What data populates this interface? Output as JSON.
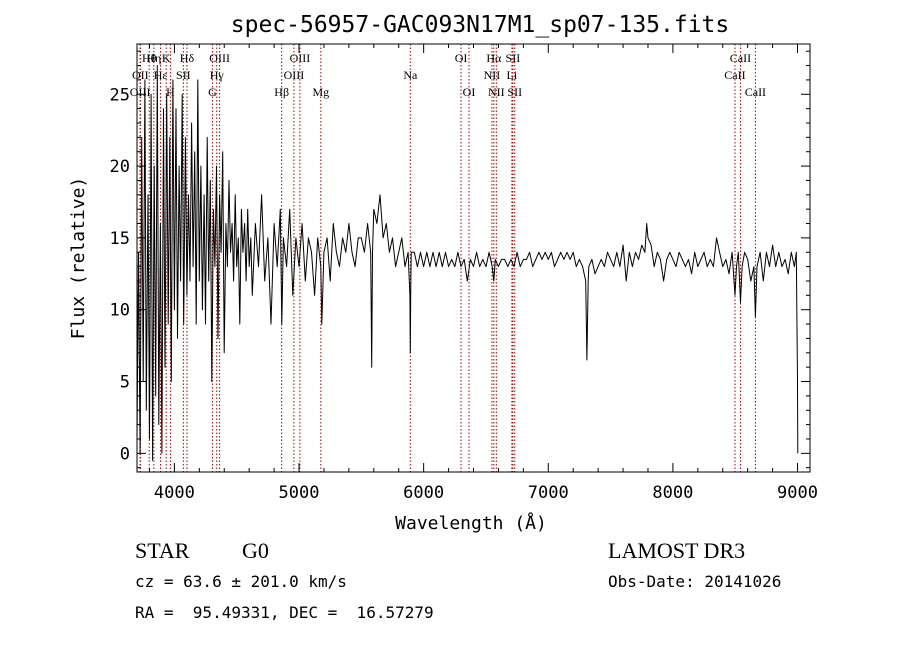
{
  "chart_data": {
    "type": "line",
    "title": "spec-56957-GAC093N17M1_sp07-135.fits",
    "xlabel": "Wavelength (Å)",
    "ylabel": "Flux (relative)",
    "xlim": [
      3700,
      9100
    ],
    "ylim": [
      -1.3,
      28.5
    ],
    "xticks": [
      4000,
      5000,
      6000,
      7000,
      8000,
      9000
    ],
    "yticks": [
      0,
      5,
      10,
      15,
      20,
      25
    ],
    "grid": false,
    "line_color": "#000000",
    "marker_color": "#aa0000",
    "series": [
      {
        "name": "flux",
        "points": [
          [
            3700,
            1
          ],
          [
            3712,
            14
          ],
          [
            3725,
            0
          ],
          [
            3738,
            22
          ],
          [
            3750,
            5
          ],
          [
            3763,
            26
          ],
          [
            3775,
            3
          ],
          [
            3788,
            18
          ],
          [
            3800,
            1
          ],
          [
            3813,
            25
          ],
          [
            3825,
            -0.5
          ],
          [
            3838,
            20
          ],
          [
            3850,
            4
          ],
          [
            3863,
            27
          ],
          [
            3875,
            2
          ],
          [
            3888,
            16
          ],
          [
            3900,
            0
          ],
          [
            3913,
            24
          ],
          [
            3925,
            6
          ],
          [
            3938,
            25
          ],
          [
            3950,
            9
          ],
          [
            3963,
            22
          ],
          [
            3975,
            5
          ],
          [
            3988,
            26
          ],
          [
            4000,
            10
          ],
          [
            4013,
            24
          ],
          [
            4025,
            8
          ],
          [
            4038,
            20
          ],
          [
            4050,
            12
          ],
          [
            4063,
            25
          ],
          [
            4075,
            9
          ],
          [
            4088,
            22
          ],
          [
            4100,
            11
          ],
          [
            4113,
            18
          ],
          [
            4125,
            12
          ],
          [
            4138,
            23
          ],
          [
            4150,
            13
          ],
          [
            4163,
            21
          ],
          [
            4175,
            9
          ],
          [
            4188,
            26
          ],
          [
            4200,
            12
          ],
          [
            4213,
            20
          ],
          [
            4225,
            10
          ],
          [
            4238,
            18
          ],
          [
            4250,
            9
          ],
          [
            4263,
            22
          ],
          [
            4275,
            12
          ],
          [
            4288,
            19
          ],
          [
            4300,
            5
          ],
          [
            4313,
            17
          ],
          [
            4325,
            13
          ],
          [
            4338,
            20
          ],
          [
            4350,
            8
          ],
          [
            4363,
            18
          ],
          [
            4375,
            14
          ],
          [
            4388,
            21
          ],
          [
            4400,
            7
          ],
          [
            4413,
            16
          ],
          [
            4425,
            13
          ],
          [
            4438,
            19
          ],
          [
            4450,
            14
          ],
          [
            4463,
            16
          ],
          [
            4475,
            12
          ],
          [
            4488,
            18
          ],
          [
            4500,
            13
          ],
          [
            4513,
            15
          ],
          [
            4525,
            9
          ],
          [
            4538,
            17
          ],
          [
            4550,
            14
          ],
          [
            4563,
            16
          ],
          [
            4575,
            12
          ],
          [
            4588,
            17
          ],
          [
            4600,
            13
          ],
          [
            4613,
            15
          ],
          [
            4625,
            11
          ],
          [
            4650,
            16
          ],
          [
            4675,
            13
          ],
          [
            4700,
            18
          ],
          [
            4725,
            12
          ],
          [
            4750,
            15
          ],
          [
            4775,
            9
          ],
          [
            4800,
            16
          ],
          [
            4825,
            13
          ],
          [
            4850,
            17
          ],
          [
            4862,
            9
          ],
          [
            4875,
            15
          ],
          [
            4900,
            13
          ],
          [
            4925,
            17
          ],
          [
            4950,
            11
          ],
          [
            4975,
            15
          ],
          [
            5000,
            13
          ],
          [
            5025,
            16
          ],
          [
            5050,
            12
          ],
          [
            5075,
            15
          ],
          [
            5100,
            14
          ],
          [
            5125,
            11
          ],
          [
            5150,
            15
          ],
          [
            5175,
            13
          ],
          [
            5183,
            9
          ],
          [
            5200,
            14
          ],
          [
            5225,
            15
          ],
          [
            5250,
            12
          ],
          [
            5275,
            16
          ],
          [
            5300,
            14
          ],
          [
            5325,
            13
          ],
          [
            5350,
            15
          ],
          [
            5375,
            14
          ],
          [
            5400,
            16
          ],
          [
            5425,
            14
          ],
          [
            5450,
            13
          ],
          [
            5475,
            15
          ],
          [
            5500,
            15
          ],
          [
            5525,
            14
          ],
          [
            5550,
            16
          ],
          [
            5575,
            14
          ],
          [
            5583,
            6
          ],
          [
            5590,
            14
          ],
          [
            5600,
            17
          ],
          [
            5625,
            16
          ],
          [
            5650,
            18
          ],
          [
            5675,
            15
          ],
          [
            5700,
            16
          ],
          [
            5725,
            14
          ],
          [
            5750,
            15
          ],
          [
            5775,
            13
          ],
          [
            5800,
            14
          ],
          [
            5825,
            15
          ],
          [
            5850,
            13
          ],
          [
            5875,
            14
          ],
          [
            5890,
            11
          ],
          [
            5893,
            7
          ],
          [
            5896,
            11
          ],
          [
            5900,
            14
          ],
          [
            5925,
            14
          ],
          [
            5950,
            13
          ],
          [
            5975,
            14
          ],
          [
            6000,
            13
          ],
          [
            6025,
            14
          ],
          [
            6050,
            13
          ],
          [
            6075,
            14
          ],
          [
            6100,
            13
          ],
          [
            6125,
            14
          ],
          [
            6150,
            13
          ],
          [
            6175,
            14
          ],
          [
            6200,
            13
          ],
          [
            6225,
            13.5
          ],
          [
            6250,
            13
          ],
          [
            6275,
            14
          ],
          [
            6300,
            13
          ],
          [
            6325,
            13.5
          ],
          [
            6350,
            12
          ],
          [
            6375,
            13.5
          ],
          [
            6400,
            13
          ],
          [
            6425,
            14
          ],
          [
            6450,
            13
          ],
          [
            6475,
            13.5
          ],
          [
            6500,
            13
          ],
          [
            6525,
            14
          ],
          [
            6550,
            13
          ],
          [
            6563,
            12
          ],
          [
            6575,
            13.5
          ],
          [
            6600,
            13
          ],
          [
            6625,
            13.5
          ],
          [
            6650,
            13.5
          ],
          [
            6675,
            13
          ],
          [
            6700,
            13.5
          ],
          [
            6725,
            13
          ],
          [
            6750,
            14
          ],
          [
            6775,
            13
          ],
          [
            6800,
            13.5
          ],
          [
            6825,
            13.5
          ],
          [
            6850,
            14
          ],
          [
            6875,
            13
          ],
          [
            6900,
            13.5
          ],
          [
            6925,
            14
          ],
          [
            6950,
            13.5
          ],
          [
            6975,
            14
          ],
          [
            7000,
            13.5
          ],
          [
            7025,
            14
          ],
          [
            7050,
            13
          ],
          [
            7075,
            13.5
          ],
          [
            7100,
            14
          ],
          [
            7125,
            13.5
          ],
          [
            7150,
            14
          ],
          [
            7175,
            13.5
          ],
          [
            7200,
            14
          ],
          [
            7225,
            13
          ],
          [
            7250,
            13.5
          ],
          [
            7275,
            13
          ],
          [
            7300,
            12
          ],
          [
            7310,
            6.5
          ],
          [
            7320,
            12
          ],
          [
            7325,
            13
          ],
          [
            7350,
            13.5
          ],
          [
            7375,
            12.5
          ],
          [
            7400,
            13
          ],
          [
            7425,
            13.5
          ],
          [
            7450,
            13
          ],
          [
            7475,
            14
          ],
          [
            7500,
            13.5
          ],
          [
            7525,
            13
          ],
          [
            7550,
            14
          ],
          [
            7575,
            13
          ],
          [
            7600,
            14.5
          ],
          [
            7625,
            12
          ],
          [
            7650,
            14
          ],
          [
            7675,
            13
          ],
          [
            7700,
            14
          ],
          [
            7725,
            13.5
          ],
          [
            7750,
            14.5
          ],
          [
            7775,
            14
          ],
          [
            7790,
            16
          ],
          [
            7800,
            15
          ],
          [
            7825,
            14.5
          ],
          [
            7850,
            13
          ],
          [
            7875,
            14
          ],
          [
            7900,
            13.5
          ],
          [
            7925,
            12
          ],
          [
            7950,
            13.5
          ],
          [
            7975,
            14
          ],
          [
            8000,
            13.5
          ],
          [
            8025,
            13
          ],
          [
            8050,
            14
          ],
          [
            8075,
            13.5
          ],
          [
            8100,
            13
          ],
          [
            8125,
            13.5
          ],
          [
            8150,
            12.5
          ],
          [
            8175,
            14
          ],
          [
            8200,
            13
          ],
          [
            8225,
            13.5
          ],
          [
            8250,
            14
          ],
          [
            8275,
            13
          ],
          [
            8300,
            13.5
          ],
          [
            8325,
            13
          ],
          [
            8350,
            15
          ],
          [
            8375,
            14
          ],
          [
            8400,
            13
          ],
          [
            8425,
            13.5
          ],
          [
            8450,
            12.5
          ],
          [
            8475,
            14
          ],
          [
            8498,
            11
          ],
          [
            8510,
            13
          ],
          [
            8525,
            14
          ],
          [
            8542,
            10.5
          ],
          [
            8555,
            13
          ],
          [
            8575,
            14
          ],
          [
            8600,
            13.5
          ],
          [
            8625,
            12
          ],
          [
            8650,
            13
          ],
          [
            8662,
            9.5
          ],
          [
            8675,
            13
          ],
          [
            8700,
            14
          ],
          [
            8725,
            12
          ],
          [
            8750,
            14
          ],
          [
            8775,
            13
          ],
          [
            8800,
            14.5
          ],
          [
            8825,
            13
          ],
          [
            8850,
            14
          ],
          [
            8875,
            13
          ],
          [
            8900,
            13.5
          ],
          [
            8925,
            12.5
          ],
          [
            8950,
            14
          ],
          [
            8975,
            13
          ],
          [
            8990,
            14
          ],
          [
            9000,
            5
          ],
          [
            9002,
            0
          ]
        ]
      }
    ],
    "lines": [
      {
        "label": "Hθ",
        "wavelength": 3798,
        "row": 0
      },
      {
        "label": "OII",
        "wavelength": 3727,
        "row": 1
      },
      {
        "label": "OIII",
        "wavelength": 3725,
        "row": 2
      },
      {
        "label": "Hη",
        "wavelength": 3835,
        "row": 0
      },
      {
        "label": "Hε",
        "wavelength": 3889,
        "row": 1
      },
      {
        "label": "H",
        "wavelength": 3968,
        "row": 2
      },
      {
        "label": "K",
        "wavelength": 3934,
        "row": 0
      },
      {
        "label": "Hδ",
        "wavelength": 4101,
        "row": 0
      },
      {
        "label": "SII",
        "wavelength": 4072,
        "row": 1
      },
      {
        "label": "OIII",
        "wavelength": 4363,
        "row": 0
      },
      {
        "label": "Hγ",
        "wavelength": 4340,
        "row": 1
      },
      {
        "label": "G",
        "wavelength": 4305,
        "row": 2
      },
      {
        "label": "Hβ",
        "wavelength": 4861,
        "row": 2
      },
      {
        "label": "OIII",
        "wavelength": 5007,
        "row": 0
      },
      {
        "label": "OIII",
        "wavelength": 4959,
        "row": 1
      },
      {
        "label": "Mg",
        "wavelength": 5175,
        "row": 2
      },
      {
        "label": "Na",
        "wavelength": 5893,
        "row": 1
      },
      {
        "label": "OI",
        "wavelength": 6300,
        "row": 0
      },
      {
        "label": "OI",
        "wavelength": 6364,
        "row": 2
      },
      {
        "label": "Hα",
        "wavelength": 6563,
        "row": 0
      },
      {
        "label": "NII",
        "wavelength": 6548,
        "row": 1
      },
      {
        "label": "NII",
        "wavelength": 6583,
        "row": 2
      },
      {
        "label": "SII",
        "wavelength": 6716,
        "row": 0
      },
      {
        "label": "Li",
        "wavelength": 6708,
        "row": 1
      },
      {
        "label": "SII",
        "wavelength": 6731,
        "row": 2
      },
      {
        "label": "CaII",
        "wavelength": 8542,
        "row": 0
      },
      {
        "label": "CaII",
        "wavelength": 8498,
        "row": 1
      },
      {
        "label": "CaII",
        "wavelength": 8662,
        "row": 2
      }
    ]
  },
  "info": {
    "object_class": "STAR",
    "subclass": "G0",
    "survey": "LAMOST DR3",
    "redshift_line": "cz = 63.6 ± 201.0 km/s",
    "obs_date": "Obs-Date: 20141026",
    "coords": "RA =  95.49331, DEC =  16.57279"
  }
}
